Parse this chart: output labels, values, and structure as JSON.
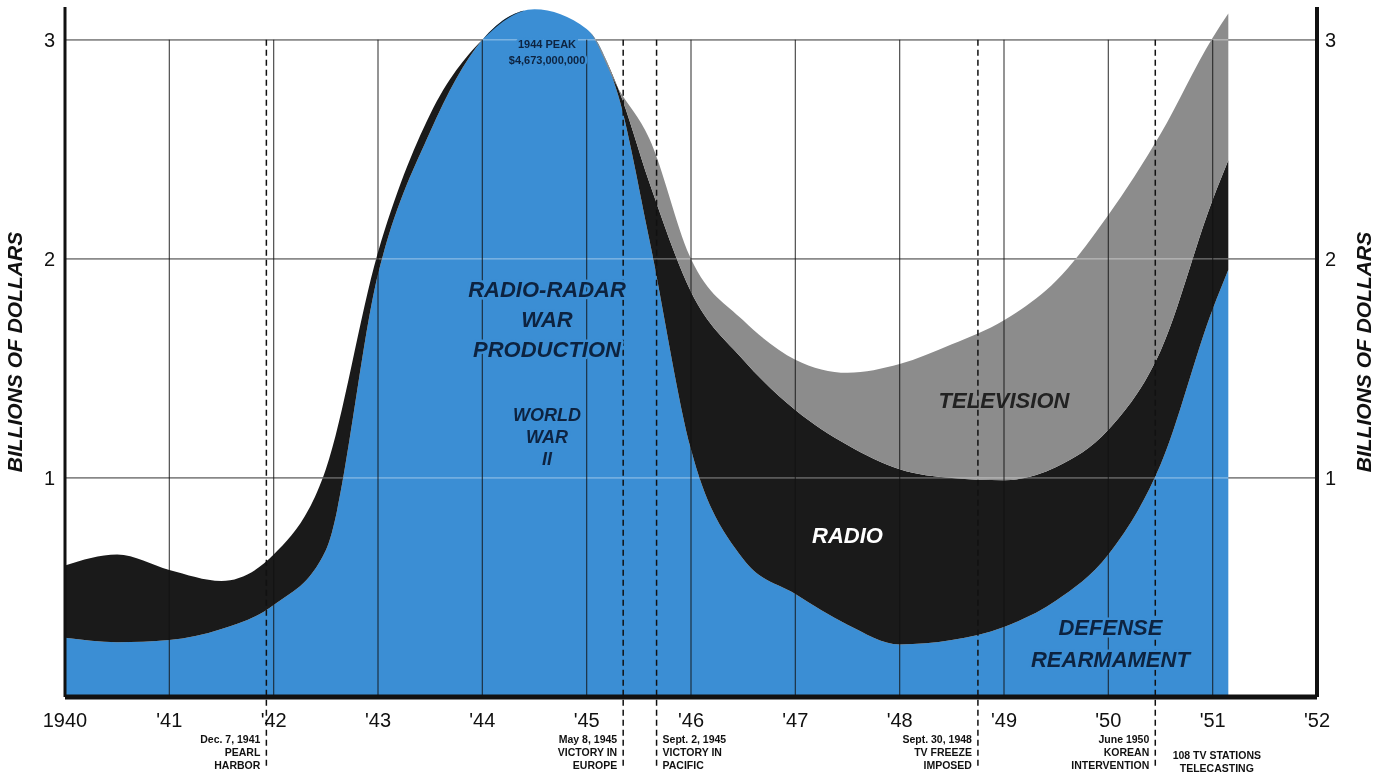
{
  "chart_data": {
    "type": "area",
    "stacked": true,
    "ylabel": "BILLIONS OF DOLLARS",
    "y2label": "BILLIONS OF DOLLARS",
    "x": [
      1940,
      1940.5,
      1941,
      1941.5,
      1942,
      1942.5,
      1943,
      1943.5,
      1944,
      1944.5,
      1945,
      1945.3,
      1945.6,
      1946,
      1946.5,
      1947,
      1947.5,
      1948,
      1948.5,
      1949,
      1949.5,
      1950,
      1950.5,
      1951,
      1951.15
    ],
    "series": [
      {
        "color": "#3b8ed4",
        "values": [
          0.27,
          0.25,
          0.26,
          0.31,
          0.42,
          0.67,
          1.93,
          2.58,
          3.0,
          3.14,
          3.05,
          2.75,
          2.09,
          1.13,
          0.63,
          0.47,
          0.33,
          0.24,
          0.26,
          0.32,
          0.44,
          0.65,
          1.06,
          1.77,
          1.95
        ]
      },
      {
        "name": "RADIO",
        "color": "#1a1a1a",
        "values": [
          0.33,
          0.4,
          0.32,
          0.22,
          0.23,
          0.37,
          0.1,
          0.08,
          0,
          0,
          0,
          0.03,
          0.26,
          0.72,
          0.91,
          0.84,
          0.82,
          0.8,
          0.74,
          0.67,
          0.61,
          0.57,
          0.52,
          0.5,
          0.5
        ]
      },
      {
        "name": "TELEVISION",
        "color": "#8c8c8c",
        "values": [
          0,
          0,
          0,
          0,
          0,
          0,
          0,
          0,
          0,
          0,
          0,
          0,
          0.2,
          0.15,
          0.18,
          0.23,
          0.33,
          0.48,
          0.61,
          0.73,
          0.85,
          0.98,
          0.99,
          0.74,
          0.67
        ]
      }
    ],
    "xlim": [
      1940,
      1952
    ],
    "ylim": [
      0,
      3.15
    ],
    "y2lim": [
      0,
      3.15
    ],
    "xticks": [
      {
        "value": 1940,
        "label": "1940"
      },
      {
        "value": 1941,
        "label": "'41"
      },
      {
        "value": 1942,
        "label": "'42"
      },
      {
        "value": 1943,
        "label": "'43"
      },
      {
        "value": 1944,
        "label": "'44"
      },
      {
        "value": 1945,
        "label": "'45"
      },
      {
        "value": 1946,
        "label": "'46"
      },
      {
        "value": 1947,
        "label": "'47"
      },
      {
        "value": 1948,
        "label": "'48"
      },
      {
        "value": 1949,
        "label": "'49"
      },
      {
        "value": 1950,
        "label": "'50"
      },
      {
        "value": 1951,
        "label": "'51"
      },
      {
        "value": 1952,
        "label": "'52"
      }
    ],
    "yticks": [
      1,
      2,
      3
    ],
    "y2ticks": [
      1,
      2,
      3
    ],
    "grid": true,
    "legend": false,
    "ref_lines": [
      {
        "axis": "x",
        "value": 1941.93,
        "label": "Dec. 7, 1941\nPEARL\nHARBOR",
        "line_style": "dashed"
      },
      {
        "axis": "x",
        "value": 1945.35,
        "label": "May 8, 1945\nVICTORY IN\nEUROPE",
        "line_style": "dashed"
      },
      {
        "axis": "x",
        "value": 1945.67,
        "label": "Sept. 2, 1945\nVICTORY IN\nPACIFIC",
        "line_style": "dashed"
      },
      {
        "axis": "x",
        "value": 1948.75,
        "label": "Sept. 30, 1948\nTV FREEZE\nIMPOSED",
        "line_style": "dashed"
      },
      {
        "axis": "x",
        "value": 1950.45,
        "label": "June 1950\nKOREAN\nINTERVENTION",
        "line_style": "dashed"
      }
    ],
    "annotations": [
      "1944 PEAK\n$4,673,000,000",
      "RADIO-RADAR\nWAR\nPRODUCTION",
      "WORLD\nWAR\nII",
      "DEFENSE\nREARMAMENT",
      "108 TV STATIONS\nTELECASTING"
    ]
  }
}
